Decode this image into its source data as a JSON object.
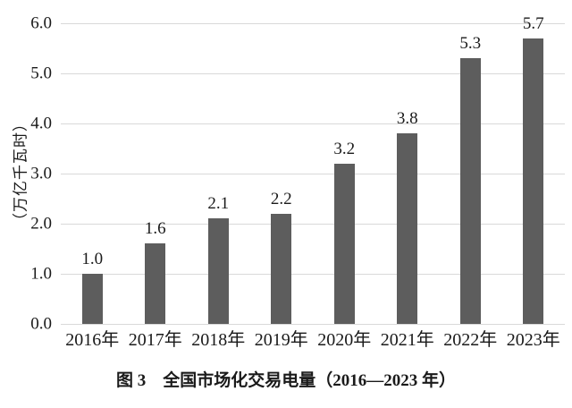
{
  "figure": {
    "caption": "图 3　全国市场化交易电量（2016—2023 年）"
  },
  "chart_data": {
    "type": "bar",
    "categories": [
      "2016年",
      "2017年",
      "2018年",
      "2019年",
      "2020年",
      "2021年",
      "2022年",
      "2023年"
    ],
    "values": [
      1.0,
      1.6,
      2.1,
      2.2,
      3.2,
      3.8,
      5.3,
      5.7
    ],
    "bar_labels": [
      "1.0",
      "1.6",
      "2.1",
      "2.2",
      "3.2",
      "3.8",
      "5.3",
      "5.7"
    ],
    "title": "图 3　全国市场化交易电量（2016—2023 年）",
    "xlabel": "",
    "ylabel": "（万亿千瓦时）",
    "ylim": [
      0,
      6
    ],
    "ytick_labels": [
      "0.0",
      "1.0",
      "2.0",
      "3.0",
      "4.0",
      "5.0",
      "6.0"
    ],
    "grid": true,
    "legend": "none",
    "bar_color": "#5d5d5d",
    "grid_color": "#d9d9d9",
    "text_color": "#1a1a1a"
  }
}
